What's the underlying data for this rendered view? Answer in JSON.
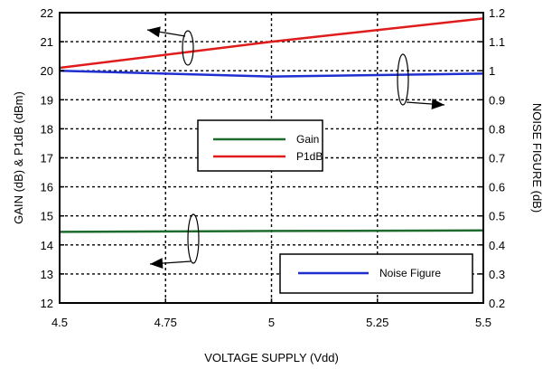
{
  "chart_data": {
    "type": "line",
    "xlabel": "VOLTAGE SUPPLY (Vdd)",
    "ylabel_left": "GAIN (dB) & P1dB (dBm)",
    "ylabel_right": "NOISE FIGURE (dB)",
    "xlim": [
      4.5,
      5.5
    ],
    "ylim_left": [
      12,
      22
    ],
    "ylim_right": [
      0.2,
      1.2
    ],
    "x_ticks": [
      "4.5",
      "4.75",
      "5",
      "5.25",
      "5.5"
    ],
    "y_left_ticks": [
      "12",
      "13",
      "14",
      "15",
      "16",
      "17",
      "18",
      "19",
      "20",
      "21",
      "22"
    ],
    "y_right_ticks": [
      "0.2",
      "0.3",
      "0.4",
      "0.5",
      "0.6",
      "0.7",
      "0.8",
      "0.9",
      "1",
      "1.1",
      "1.2"
    ],
    "grid": true,
    "series": [
      {
        "name": "Gain",
        "axis": "left",
        "color": "#1e6b2e",
        "x": [
          4.5,
          5.0,
          5.5
        ],
        "y": [
          14.45,
          14.48,
          14.5
        ]
      },
      {
        "name": "P1dB",
        "axis": "left",
        "color": "#e01b1b",
        "x": [
          4.5,
          5.0,
          5.5
        ],
        "y": [
          20.1,
          21.0,
          21.8
        ]
      },
      {
        "name": "Noise Figure",
        "axis": "right",
        "color": "#1f2fd0",
        "x": [
          4.5,
          5.0,
          5.5
        ],
        "y": [
          1.0,
          0.98,
          0.99
        ]
      }
    ],
    "legends": [
      {
        "entries": [
          "Gain",
          "P1dB"
        ],
        "position": "center-left"
      },
      {
        "entries": [
          "Noise Figure"
        ],
        "position": "bottom-right"
      }
    ]
  }
}
